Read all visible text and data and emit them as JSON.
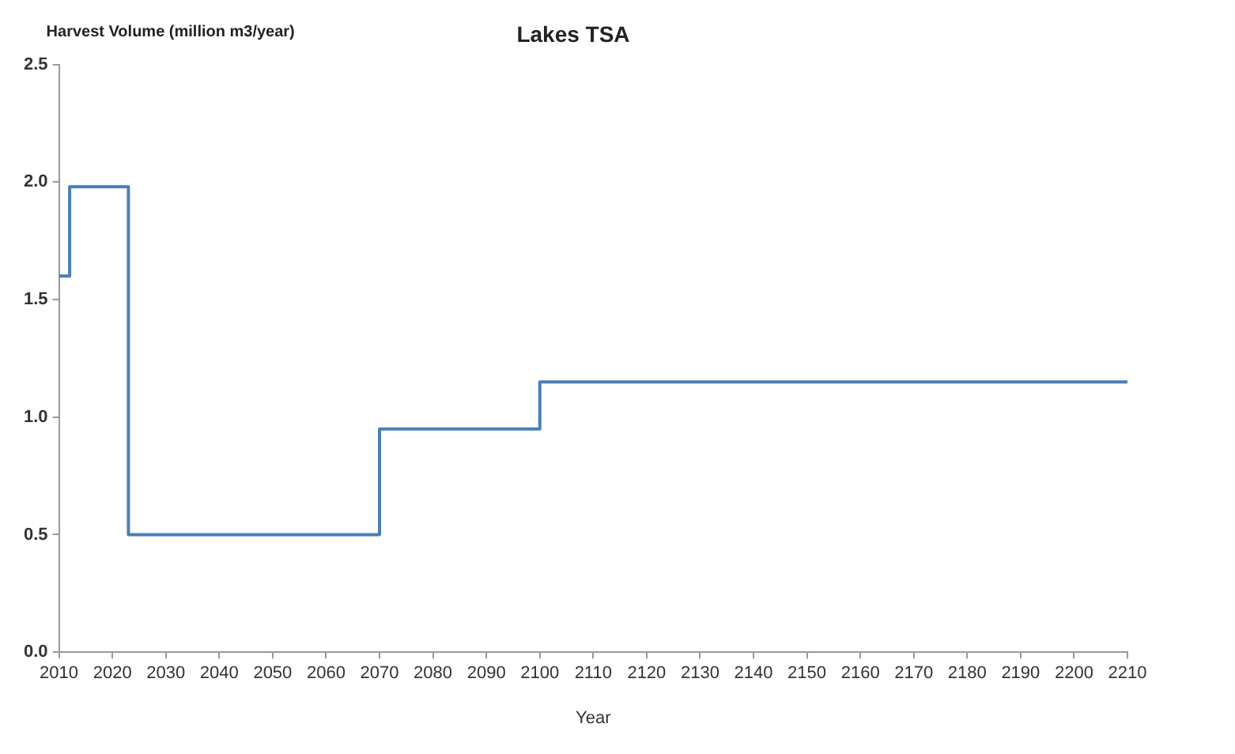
{
  "chart_data": {
    "type": "step",
    "title": "Lakes TSA",
    "xlabel": "Year",
    "ylabel": "Harvest Volume (million m3/year)",
    "x": [
      2010,
      2012,
      2023,
      2070,
      2100,
      2210
    ],
    "series": [
      {
        "color": "#4a7ebb",
        "values": [
          1.6,
          1.98,
          0.5,
          0.95,
          1.15,
          1.15
        ]
      }
    ],
    "xlim": [
      2010,
      2210
    ],
    "xticks": [
      2010,
      2020,
      2030,
      2040,
      2050,
      2060,
      2070,
      2080,
      2090,
      2100,
      2110,
      2120,
      2130,
      2140,
      2150,
      2160,
      2170,
      2180,
      2190,
      2200,
      2210
    ],
    "ylim": [
      0,
      2.5
    ],
    "yticks": [
      {
        "value": 0,
        "label": "0.0"
      },
      {
        "value": 0.5,
        "label": "0.5"
      },
      {
        "value": 1,
        "label": "1.0"
      },
      {
        "value": 1.5,
        "label": "1.5"
      },
      {
        "value": 2,
        "label": "2.0"
      },
      {
        "value": 2.5,
        "label": "2.5"
      }
    ],
    "grid": false,
    "legend": false
  }
}
